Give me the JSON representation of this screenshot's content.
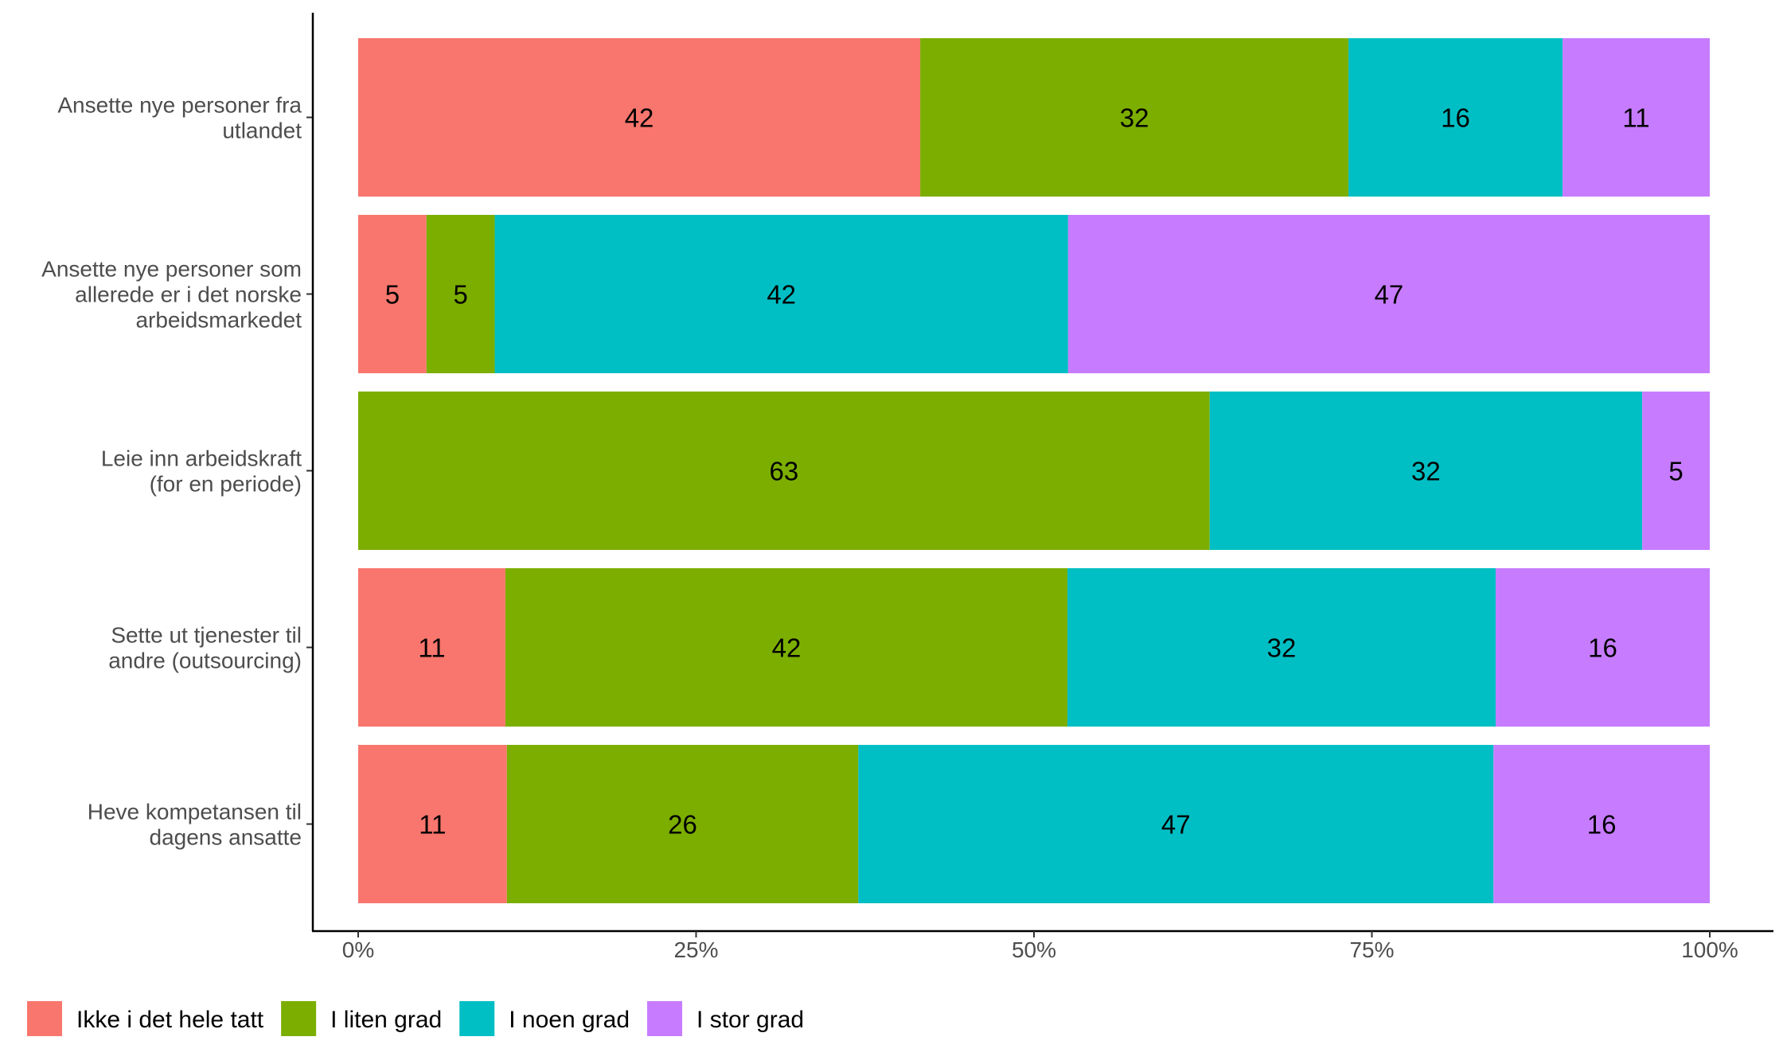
{
  "chart_data": {
    "type": "bar",
    "orientation": "horizontal",
    "stacked": "percent",
    "categories": [
      [
        "Ansette nye personer fra",
        "utlandet"
      ],
      [
        "Ansette nye personer som",
        "allerede er i det norske",
        "arbeidsmarkedet"
      ],
      [
        "Leie inn arbeidskraft",
        "(for en periode)"
      ],
      [
        "Sette ut tjenester til",
        "andre (outsourcing)"
      ],
      [
        "Heve kompetansen til",
        "dagens ansatte"
      ]
    ],
    "series": [
      {
        "name": "Ikke i det hele tatt",
        "color": "#F8766D",
        "values": [
          42,
          5,
          0,
          11,
          11
        ]
      },
      {
        "name": "I liten grad",
        "color": "#7CAE00",
        "values": [
          32,
          5,
          63,
          42,
          26
        ]
      },
      {
        "name": "I noen grad",
        "color": "#00BFC4",
        "values": [
          16,
          42,
          32,
          32,
          47
        ]
      },
      {
        "name": "I stor grad",
        "color": "#C77CFF",
        "values": [
          11,
          47,
          5,
          16,
          16
        ]
      }
    ],
    "xticks": [
      "0%",
      "25%",
      "50%",
      "75%",
      "100%"
    ],
    "xlim": [
      0,
      100
    ],
    "title": "",
    "xlabel": "",
    "ylabel": "",
    "grid": false,
    "legend_position": "bottom-left"
  }
}
